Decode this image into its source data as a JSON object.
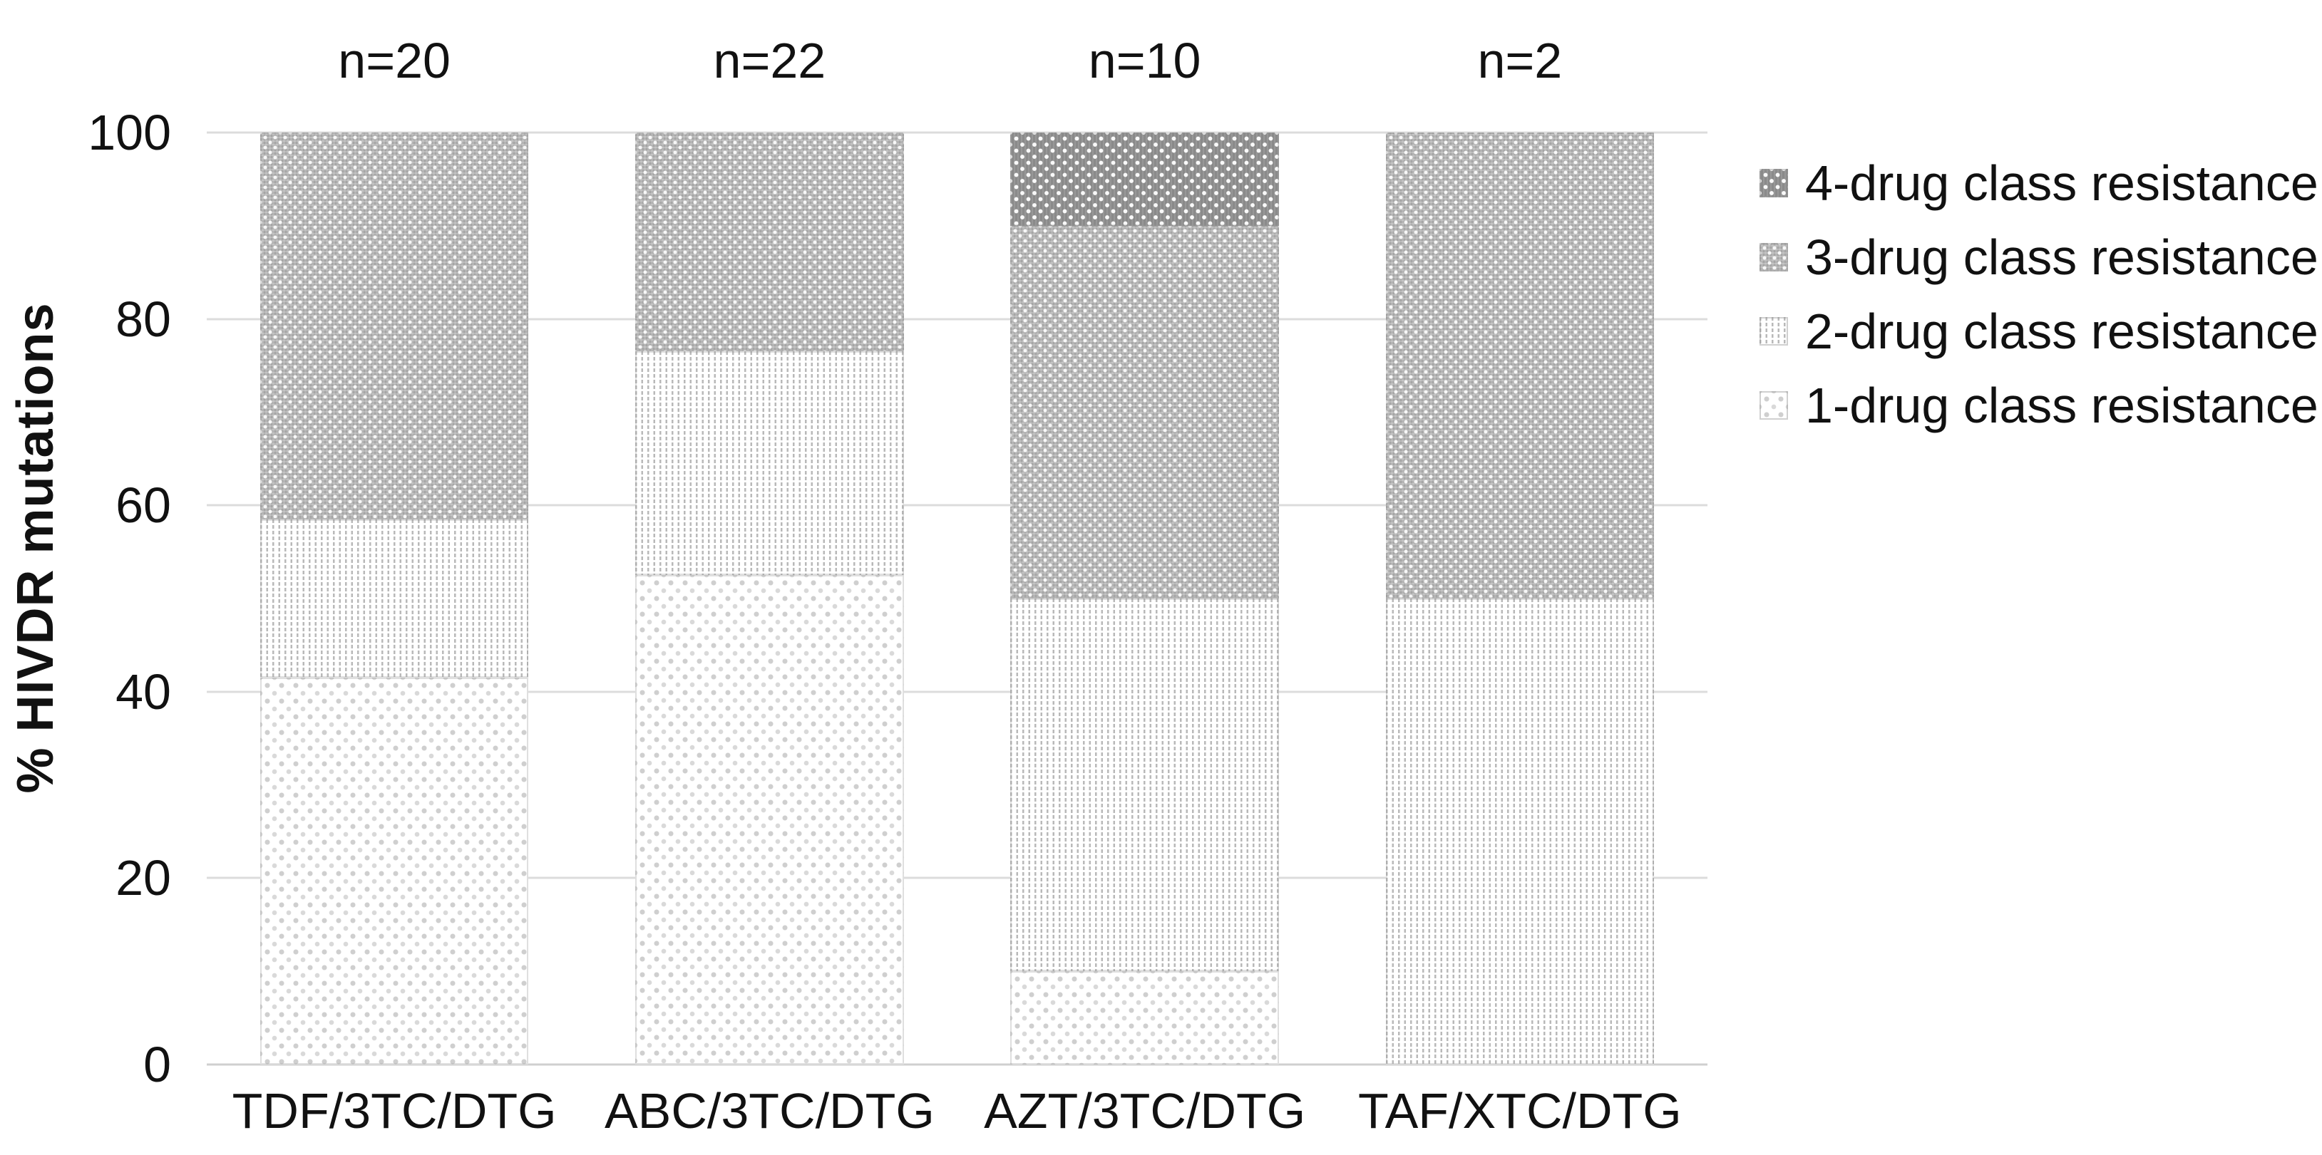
{
  "chart_data": {
    "type": "bar",
    "stacked": true,
    "title": "",
    "ylabel": "% HIVDR mutations",
    "xlabel": "",
    "ylim": [
      0,
      100
    ],
    "yticks": [
      0,
      20,
      40,
      60,
      80,
      100
    ],
    "grid": true,
    "legend_position": "right",
    "categories": [
      "TDF/3TC/DTG",
      "ABC/3TC/DTG",
      "AZT/3TC/DTG",
      "TAF/XTC/DTG"
    ],
    "n_labels": [
      "n=20",
      "n=22",
      "n=10",
      "n=2"
    ],
    "series": [
      {
        "name": "1-drug class resistance",
        "pattern": "light-dots",
        "values": [
          41.5,
          52.5,
          10,
          0
        ]
      },
      {
        "name": "2-drug class resistance",
        "pattern": "dotted-columns",
        "values": [
          17,
          24,
          40,
          50
        ]
      },
      {
        "name": "3-drug class resistance",
        "pattern": "gray-weave",
        "values": [
          41.5,
          23.5,
          40,
          50
        ]
      },
      {
        "name": "4-drug class resistance",
        "pattern": "dark-weave",
        "values": [
          0,
          0,
          10,
          0
        ]
      }
    ],
    "legend": [
      {
        "label": "4-drug class resistance",
        "pattern": "dark-weave"
      },
      {
        "label": "3-drug class resistance",
        "pattern": "gray-weave"
      },
      {
        "label": "2-drug class resistance",
        "pattern": "dotted-columns"
      },
      {
        "label": "1-drug class resistance",
        "pattern": "light-dots"
      }
    ],
    "colors": {
      "dark_gray": "#8a8a8a",
      "medium_gray": "#b4b4b4",
      "pattern_line_gray": "#b9b9b9",
      "light_dot_gray": "#cfcfcf",
      "gridline": "#dcdcdc",
      "text": "#111111",
      "background": "#ffffff"
    }
  }
}
